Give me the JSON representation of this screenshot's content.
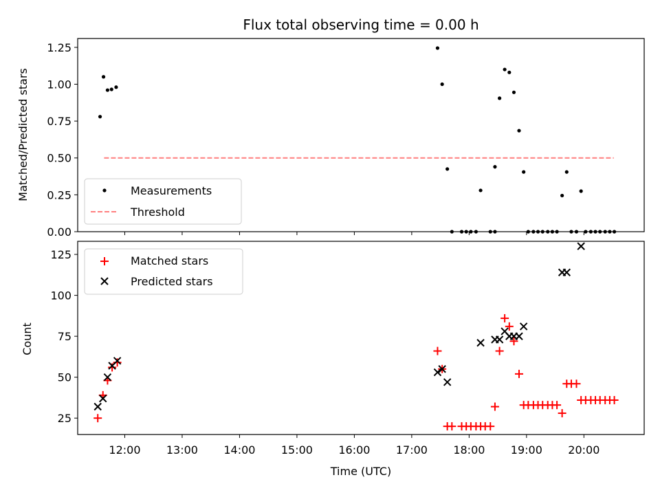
{
  "chart_data": [
    {
      "type": "scatter",
      "title": "Flux total observing time = 0.00 h",
      "xlabel": "",
      "ylabel": "Matched/Predicted stars",
      "xlim": [
        11.18,
        21.05
      ],
      "ylim": [
        0,
        1.31
      ],
      "yticks": [
        0,
        0.25,
        0.5,
        0.75,
        1.0,
        1.25
      ],
      "ytick_labels": [
        "0.00",
        "0.25",
        "0.50",
        "0.75",
        "1.00",
        "1.25"
      ],
      "xticks": [
        12,
        13,
        14,
        15,
        16,
        17,
        18,
        19,
        20
      ],
      "legend": {
        "placement": "lower-left",
        "entries": [
          {
            "label": "Measurements",
            "marker": "dot",
            "color": "#000000"
          },
          {
            "label": "Threshold",
            "marker": "dash",
            "color": "#ff7f7f"
          }
        ]
      },
      "threshold": {
        "y": 0.5,
        "x_start": 11.64,
        "x_end": 20.52
      },
      "series": [
        {
          "name": "Measurements",
          "color": "#000000",
          "x": [
            11.57,
            11.63,
            11.7,
            11.77,
            11.85,
            17.45,
            17.53,
            17.62,
            17.7,
            17.87,
            17.95,
            18.03,
            18.12,
            18.2,
            18.37,
            18.45,
            18.45,
            18.53,
            18.62,
            18.7,
            18.78,
            18.87,
            18.95,
            19.03,
            19.12,
            19.2,
            19.28,
            19.37,
            19.45,
            19.53,
            19.62,
            19.7,
            19.78,
            19.87,
            19.95,
            20.03,
            20.12,
            20.2,
            20.28,
            20.37,
            20.45,
            20.53
          ],
          "y": [
            0.78,
            1.05,
            0.96,
            0.965,
            0.98,
            1.245,
            1.0,
            0.425,
            0,
            0,
            0,
            0,
            0,
            0.28,
            0,
            0,
            0.44,
            0.905,
            1.1,
            1.08,
            0.945,
            0.685,
            0.405,
            0,
            0,
            0,
            0,
            0,
            0,
            0,
            0.245,
            0.405,
            0,
            0,
            0.275,
            0,
            0,
            0,
            0,
            0,
            0,
            0
          ]
        }
      ]
    },
    {
      "type": "scatter",
      "title": "",
      "xlabel": "Time (UTC)",
      "ylabel": "Count",
      "xlim": [
        11.18,
        21.05
      ],
      "ylim": [
        15,
        133
      ],
      "yticks": [
        25,
        50,
        75,
        100,
        125
      ],
      "ytick_labels": [
        "25",
        "50",
        "75",
        "100",
        "125"
      ],
      "xticks": [
        12,
        13,
        14,
        15,
        16,
        17,
        18,
        19,
        20
      ],
      "xtick_labels": [
        "12:00",
        "13:00",
        "14:00",
        "15:00",
        "16:00",
        "17:00",
        "18:00",
        "19:00",
        "20:00"
      ],
      "legend": {
        "placement": "top-left",
        "entries": [
          {
            "label": "Matched stars",
            "marker": "plus",
            "color": "#ff0000"
          },
          {
            "label": "Predicted stars",
            "marker": "x",
            "color": "#000000"
          }
        ]
      },
      "series": [
        {
          "name": "Matched stars",
          "color": "#ff0000",
          "x": [
            11.53,
            11.62,
            11.7,
            11.78,
            11.87,
            17.45,
            17.53,
            17.62,
            17.7,
            17.87,
            17.95,
            18.03,
            18.12,
            18.2,
            18.28,
            18.37,
            18.45,
            18.53,
            18.62,
            18.7,
            18.78,
            18.87,
            18.95,
            19.03,
            19.12,
            19.2,
            19.28,
            19.37,
            19.45,
            19.53,
            19.62,
            19.7,
            19.78,
            19.87,
            19.95,
            20.03,
            20.12,
            20.2,
            20.28,
            20.37,
            20.45,
            20.53
          ],
          "y": [
            25,
            39,
            48,
            56,
            59,
            66,
            55,
            20,
            20,
            20,
            20,
            20,
            20,
            20,
            20,
            20,
            32,
            66,
            86,
            81,
            72,
            52,
            33,
            33,
            33,
            33,
            33,
            33,
            33,
            33,
            28,
            46,
            46,
            46,
            36,
            36,
            36,
            36,
            36,
            36,
            36,
            36
          ]
        },
        {
          "name": "Predicted stars",
          "color": "#000000",
          "x": [
            11.53,
            11.62,
            11.7,
            11.78,
            11.87,
            17.45,
            17.53,
            17.62,
            18.2,
            18.45,
            18.53,
            18.62,
            18.7,
            18.78,
            18.87,
            18.95,
            19.62,
            19.7,
            19.95
          ],
          "y": [
            32,
            37,
            50,
            57,
            60,
            53,
            55,
            47,
            71,
            73,
            73,
            78,
            75,
            75,
            75,
            81,
            114,
            114,
            130
          ]
        }
      ]
    }
  ]
}
